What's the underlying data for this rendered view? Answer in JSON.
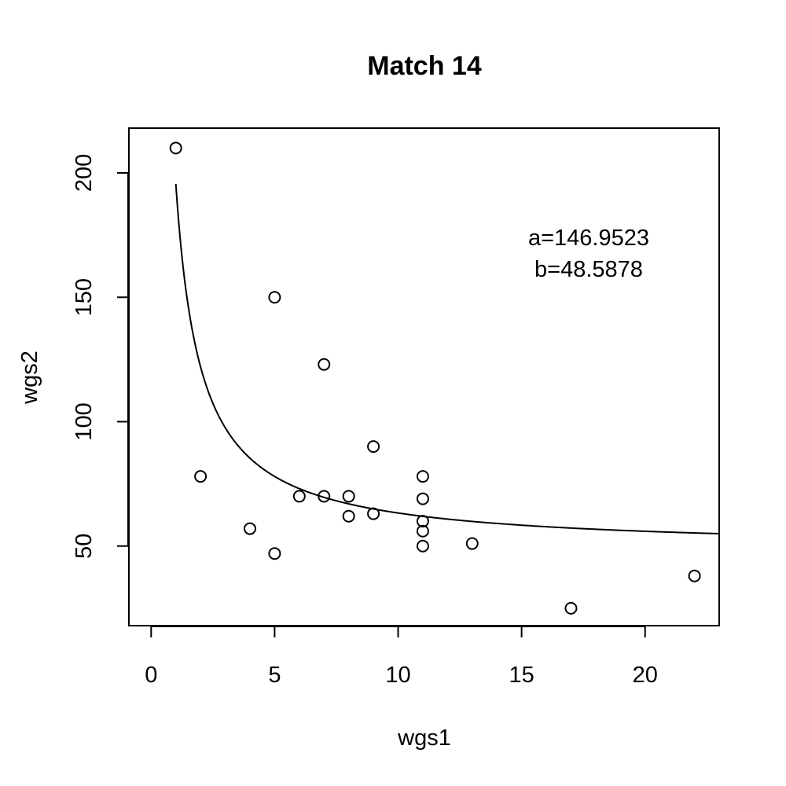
{
  "chart_data": {
    "type": "scatter",
    "title": "Match 14",
    "xlabel": "wgs1",
    "ylabel": "wgs2",
    "xlim": [
      -0.9,
      23
    ],
    "ylim": [
      18,
      218
    ],
    "x_ticks": [
      0,
      5,
      10,
      15,
      20
    ],
    "y_ticks": [
      50,
      100,
      150,
      200
    ],
    "grid": false,
    "points": [
      {
        "x": 1,
        "y": 210
      },
      {
        "x": 2,
        "y": 78
      },
      {
        "x": 4,
        "y": 57
      },
      {
        "x": 5,
        "y": 150
      },
      {
        "x": 5,
        "y": 47
      },
      {
        "x": 6,
        "y": 70
      },
      {
        "x": 7,
        "y": 123
      },
      {
        "x": 7,
        "y": 70
      },
      {
        "x": 8,
        "y": 70
      },
      {
        "x": 8,
        "y": 62
      },
      {
        "x": 9,
        "y": 90
      },
      {
        "x": 9,
        "y": 63
      },
      {
        "x": 11,
        "y": 78
      },
      {
        "x": 11,
        "y": 69
      },
      {
        "x": 11,
        "y": 60
      },
      {
        "x": 11,
        "y": 56
      },
      {
        "x": 11,
        "y": 50
      },
      {
        "x": 13,
        "y": 51
      },
      {
        "x": 17,
        "y": 25
      },
      {
        "x": 22,
        "y": 38
      }
    ],
    "fit_curve": {
      "formula": "y = a/x + b",
      "a": 146.9523,
      "b": 48.5878,
      "x_range": [
        1,
        23
      ]
    },
    "annotations": [
      "a=146.9523",
      "b=48.5878"
    ]
  }
}
